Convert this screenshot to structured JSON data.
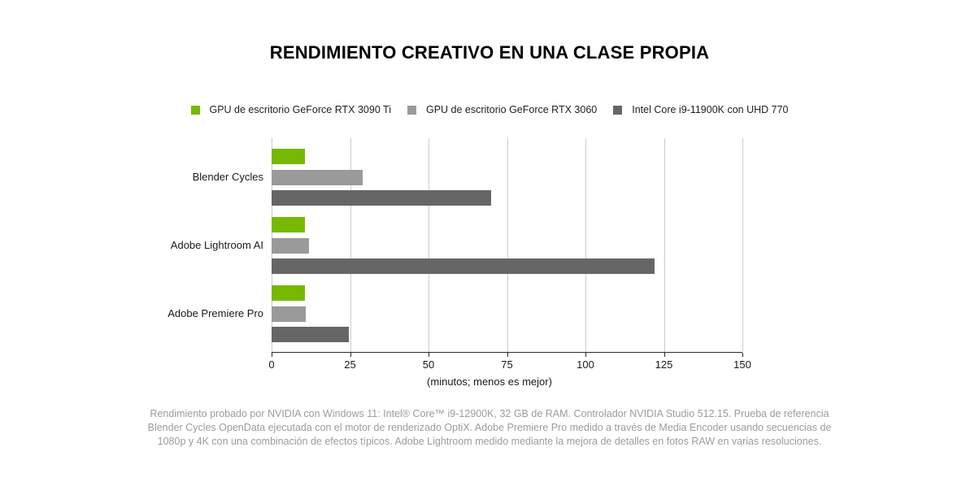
{
  "title": "RENDIMIENTO CREATIVO EN UNA CLASE PROPIA",
  "legend": [
    {
      "label": "GPU de escritorio GeForce RTX 3090 Ti",
      "color": "#76b900"
    },
    {
      "label": "GPU de escritorio GeForce RTX 3060",
      "color": "#9a9a9a"
    },
    {
      "label": "Intel Core i9-11900K con UHD 770",
      "color": "#666666"
    }
  ],
  "chart_data": {
    "type": "bar",
    "orientation": "horizontal",
    "title": "RENDIMIENTO CREATIVO EN UNA CLASE PROPIA",
    "categories": [
      "Blender Cycles",
      "Adobe Lightroom AI",
      "Adobe Premiere Pro"
    ],
    "series": [
      {
        "name": "GPU de escritorio GeForce RTX 3090 Ti",
        "color": "#76b900",
        "values": [
          10.5,
          10.5,
          10.5
        ]
      },
      {
        "name": "GPU de escritorio GeForce RTX 3060",
        "color": "#9a9a9a",
        "values": [
          29,
          12,
          11
        ]
      },
      {
        "name": "Intel Core i9-11900K con UHD 770",
        "color": "#666666",
        "values": [
          70,
          122,
          24.5
        ]
      }
    ],
    "xlabel": "(minutos; menos es mejor)",
    "x_ticks": [
      0,
      25,
      50,
      75,
      100,
      125,
      150
    ],
    "xlim": [
      0,
      150
    ],
    "grid": true,
    "legend_position": "top",
    "note": "menos es mejor"
  },
  "footnote": "Rendimiento probado por NVIDIA con Windows 11: Intel® Core™ i9-12900K, 32 GB de RAM. Controlador NVIDIA Studio 512.15. Prueba de referencia Blender Cycles OpenData ejecutada con el motor de renderizado OptiX. Adobe Premiere Pro medido a través de Media Encoder usando secuencias de 1080p y 4K con una combinación de efectos típicos. Adobe Lightroom medido mediante la mejora de detalles en fotos RAW en varias resoluciones."
}
